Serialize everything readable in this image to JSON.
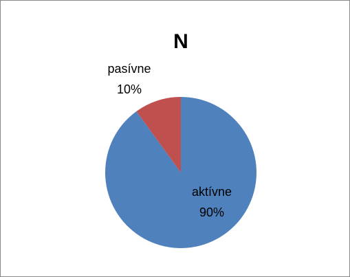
{
  "chart_data": {
    "type": "pie",
    "title": "N",
    "categories": [
      "aktívne",
      "pasívne"
    ],
    "values": [
      90,
      10
    ],
    "value_labels": [
      "90%",
      "10%"
    ],
    "colors": [
      "#4f81bd",
      "#c0504d"
    ]
  }
}
